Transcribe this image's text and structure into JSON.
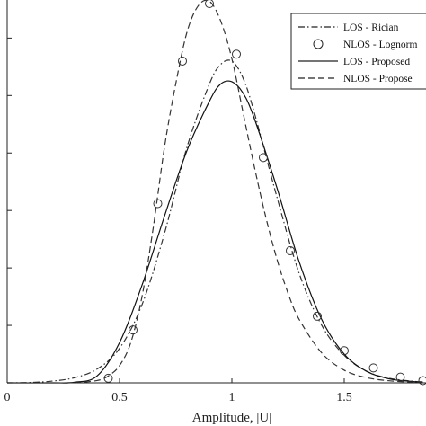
{
  "chart_data": {
    "type": "line",
    "xlabel": "Amplitude, |U|",
    "x_ticks": [
      "0",
      "0.5",
      "1",
      "1.5"
    ],
    "xlim": [
      0,
      1.85
    ],
    "ylim": [
      0,
      3.3
    ],
    "grid": false,
    "legend_position": "top-right",
    "legend": [
      {
        "label": "LOS - Rician",
        "style": "dashdot"
      },
      {
        "label": "NLOS - Lognorm",
        "style": "circle"
      },
      {
        "label": "LOS - Proposed",
        "style": "solid"
      },
      {
        "label": "NLOS - Propose",
        "style": "dashed"
      }
    ],
    "series": [
      {
        "name": "LOS - Rician",
        "style": "dashdot",
        "color": "#333333",
        "x": [
          0.0,
          0.1,
          0.2,
          0.3,
          0.4,
          0.5,
          0.6,
          0.7,
          0.8,
          0.9,
          0.95,
          1.0,
          1.05,
          1.1,
          1.2,
          1.3,
          1.4,
          1.5,
          1.6,
          1.7,
          1.8,
          1.85
        ],
        "y": [
          0.0,
          0.003,
          0.015,
          0.045,
          0.12,
          0.3,
          0.68,
          1.3,
          2.05,
          2.6,
          2.77,
          2.8,
          2.65,
          2.35,
          1.62,
          0.95,
          0.5,
          0.24,
          0.1,
          0.04,
          0.015,
          0.008
        ]
      },
      {
        "name": "LOS - Proposed",
        "style": "solid",
        "color": "#111111",
        "x": [
          0.0,
          0.2,
          0.3,
          0.4,
          0.5,
          0.6,
          0.7,
          0.8,
          0.9,
          0.95,
          1.0,
          1.05,
          1.1,
          1.2,
          1.3,
          1.4,
          1.5,
          1.6,
          1.7,
          1.8,
          1.85
        ],
        "y": [
          0.0,
          0.0,
          0.005,
          0.06,
          0.35,
          0.85,
          1.45,
          2.02,
          2.45,
          2.6,
          2.62,
          2.52,
          2.3,
          1.7,
          1.05,
          0.55,
          0.25,
          0.1,
          0.035,
          0.012,
          0.006
        ]
      },
      {
        "name": "NLOS - Propose",
        "style": "dashed",
        "color": "#333333",
        "x": [
          0.3,
          0.4,
          0.45,
          0.5,
          0.55,
          0.6,
          0.65,
          0.7,
          0.75,
          0.8,
          0.85,
          0.9,
          0.95,
          1.0,
          1.05,
          1.1,
          1.15,
          1.2,
          1.25,
          1.3,
          1.4,
          1.5,
          1.6,
          1.7,
          1.8,
          1.85
        ],
        "y": [
          0.0,
          0.02,
          0.06,
          0.15,
          0.35,
          0.75,
          1.35,
          2.05,
          2.6,
          3.05,
          3.28,
          3.32,
          3.15,
          2.82,
          2.35,
          1.88,
          1.45,
          1.08,
          0.78,
          0.55,
          0.26,
          0.11,
          0.045,
          0.018,
          0.007,
          0.004
        ]
      },
      {
        "name": "NLOS - Lognorm",
        "style": "circle",
        "color": "#333333",
        "x": [
          0.45,
          0.56,
          0.67,
          0.78,
          0.9,
          1.02,
          1.14,
          1.26,
          1.38,
          1.5,
          1.63,
          1.75,
          1.85
        ],
        "y": [
          0.04,
          0.46,
          1.56,
          2.8,
          3.3,
          2.86,
          1.96,
          1.15,
          0.58,
          0.28,
          0.13,
          0.05,
          0.02
        ]
      }
    ]
  }
}
